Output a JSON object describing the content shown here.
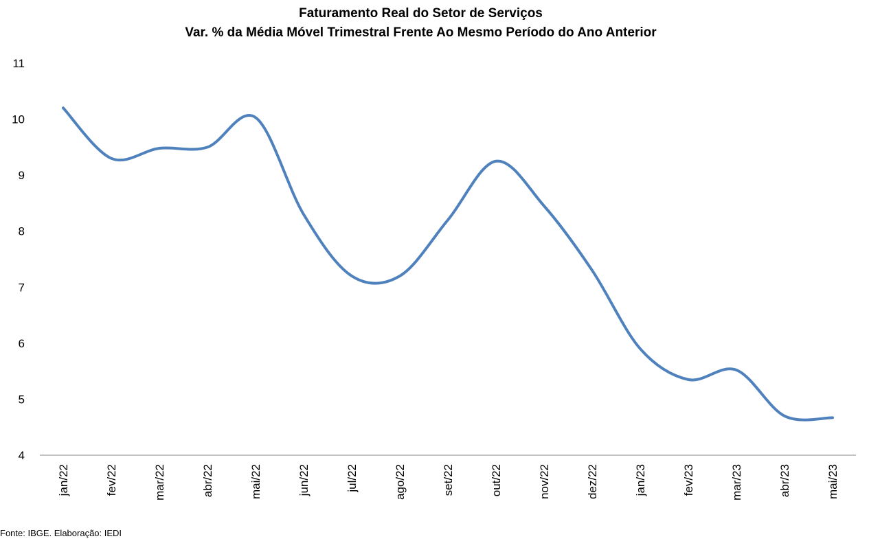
{
  "chart_data": {
    "type": "line",
    "title": "Faturamento Real do Setor de Serviços",
    "subtitle": "Var. % da Média Móvel Trimestral Frente Ao Mesmo Período do Ano Anterior",
    "xlabel": "",
    "ylabel": "",
    "ylim": [
      4,
      11
    ],
    "yticks": [
      "4",
      "5",
      "6",
      "7",
      "8",
      "9",
      "10",
      "11"
    ],
    "grid": false,
    "legend": "none",
    "categories": [
      "jan/22",
      "fev/22",
      "mar/22",
      "abr/22",
      "mai/22",
      "jun/22",
      "jul/22",
      "ago/22",
      "set/22",
      "out/22",
      "nov/22",
      "dez/22",
      "jan/23",
      "fev/23",
      "mar/23",
      "abr/23",
      "mai/23"
    ],
    "series": [
      {
        "color": "#4F81BD",
        "values": [
          10.2,
          9.3,
          9.48,
          9.5,
          10.03,
          8.3,
          7.2,
          7.2,
          8.2,
          9.25,
          8.45,
          7.3,
          5.9,
          5.35,
          5.52,
          4.7,
          4.67
        ]
      }
    ],
    "source": "Fonte: IBGE. Elaboração: IEDI"
  }
}
